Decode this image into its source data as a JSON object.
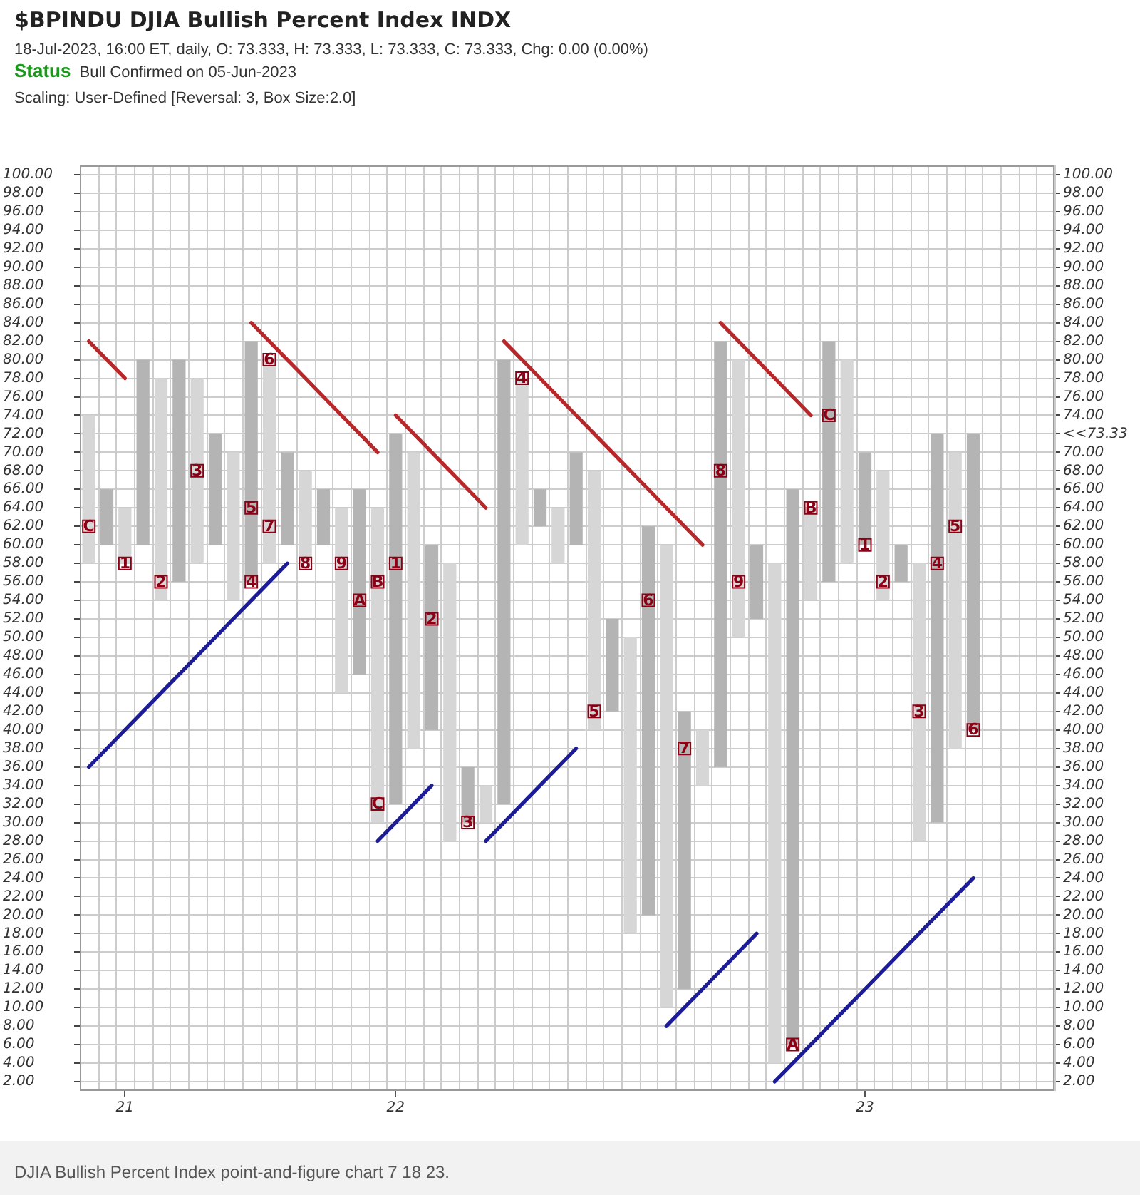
{
  "chart_data": {
    "type": "bar",
    "title": "$BPINDU DJIA Bullish Percent Index INDX",
    "subtitle": "18-Jul-2023, 16:00 ET, daily, O: 73.333, H: 73.333, L: 73.333, C: 73.333, Chg: 0.00 (0.00%)",
    "annotations": [
      "Status",
      "Bull Confirmed on 05-Jun-2023",
      "Scaling: User-Defined [Reversal: 3, Box Size:2.0]",
      "DJIA Bullish Percent Index point-and-figure chart 7 18 23."
    ],
    "categories": [
      null,
      null,
      "21",
      null,
      null,
      null,
      null,
      null,
      null,
      null,
      null,
      null,
      null,
      null,
      null,
      null,
      null,
      "22",
      null,
      null,
      null,
      null,
      null,
      null,
      null,
      null,
      null,
      null,
      null,
      null,
      null,
      null,
      null,
      null,
      null,
      null,
      null,
      null,
      null,
      null,
      null,
      null,
      null,
      "23",
      null,
      null,
      null,
      null,
      null,
      null,
      null,
      null,
      null,
      null
    ],
    "ylim": [
      1,
      101
    ],
    "yticks": [
      {
        "value": 2,
        "label": "2.00"
      },
      {
        "value": 4,
        "label": "4.00"
      },
      {
        "value": 6,
        "label": "6.00"
      },
      {
        "value": 8,
        "label": "8.00"
      },
      {
        "value": 10,
        "label": "10.00"
      },
      {
        "value": 12,
        "label": "12.00"
      },
      {
        "value": 14,
        "label": "14.00"
      },
      {
        "value": 16,
        "label": "16.00"
      },
      {
        "value": 18,
        "label": "18.00"
      },
      {
        "value": 20,
        "label": "20.00"
      },
      {
        "value": 22,
        "label": "22.00"
      },
      {
        "value": 24,
        "label": "24.00"
      },
      {
        "value": 26,
        "label": "26.00"
      },
      {
        "value": 28,
        "label": "28.00"
      },
      {
        "value": 30,
        "label": "30.00"
      },
      {
        "value": 32,
        "label": "32.00"
      },
      {
        "value": 34,
        "label": "34.00"
      },
      {
        "value": 36,
        "label": "36.00"
      },
      {
        "value": 38,
        "label": "38.00"
      },
      {
        "value": 40,
        "label": "40.00"
      },
      {
        "value": 42,
        "label": "42.00"
      },
      {
        "value": 44,
        "label": "44.00"
      },
      {
        "value": 46,
        "label": "46.00"
      },
      {
        "value": 48,
        "label": "48.00"
      },
      {
        "value": 50,
        "label": "50.00"
      },
      {
        "value": 52,
        "label": "52.00"
      },
      {
        "value": 54,
        "label": "54.00"
      },
      {
        "value": 56,
        "label": "56.00"
      },
      {
        "value": 58,
        "label": "58.00"
      },
      {
        "value": 60,
        "label": "60.00"
      },
      {
        "value": 62,
        "label": "62.00"
      },
      {
        "value": 64,
        "label": "64.00"
      },
      {
        "value": 66,
        "label": "66.00"
      },
      {
        "value": 68,
        "label": "68.00"
      },
      {
        "value": 70,
        "label": "70.00"
      },
      {
        "value": 72,
        "label": "72.00"
      },
      {
        "value": 74,
        "label": "74.00"
      },
      {
        "value": 76,
        "label": "76.00"
      },
      {
        "value": 78,
        "label": "78.00"
      },
      {
        "value": 80,
        "label": "80.00"
      },
      {
        "value": 82,
        "label": "82.00"
      },
      {
        "value": 84,
        "label": "84.00"
      },
      {
        "value": 86,
        "label": "86.00"
      },
      {
        "value": 88,
        "label": "88.00"
      },
      {
        "value": 90,
        "label": "90.00"
      },
      {
        "value": 92,
        "label": "92.00"
      },
      {
        "value": 94,
        "label": "94.00"
      },
      {
        "value": 96,
        "label": "96.00"
      },
      {
        "value": 98,
        "label": "98.00"
      },
      {
        "value": 100,
        "label": "100.00"
      }
    ],
    "y2lim": [
      1,
      101
    ],
    "y2ticks": [
      {
        "value": 2,
        "label": "2.00"
      },
      {
        "value": 4,
        "label": "4.00"
      },
      {
        "value": 6,
        "label": "6.00"
      },
      {
        "value": 8,
        "label": "8.00"
      },
      {
        "value": 10,
        "label": "10.00"
      },
      {
        "value": 12,
        "label": "12.00"
      },
      {
        "value": 14,
        "label": "14.00"
      },
      {
        "value": 16,
        "label": "16.00"
      },
      {
        "value": 18,
        "label": "18.00"
      },
      {
        "value": 20,
        "label": "20.00"
      },
      {
        "value": 22,
        "label": "22.00"
      },
      {
        "value": 24,
        "label": "24.00"
      },
      {
        "value": 26,
        "label": "26.00"
      },
      {
        "value": 28,
        "label": "28.00"
      },
      {
        "value": 30,
        "label": "30.00"
      },
      {
        "value": 32,
        "label": "32.00"
      },
      {
        "value": 34,
        "label": "34.00"
      },
      {
        "value": 36,
        "label": "36.00"
      },
      {
        "value": 38,
        "label": "38.00"
      },
      {
        "value": 40,
        "label": "40.00"
      },
      {
        "value": 42,
        "label": "42.00"
      },
      {
        "value": 44,
        "label": "44.00"
      },
      {
        "value": 46,
        "label": "46.00"
      },
      {
        "value": 48,
        "label": "48.00"
      },
      {
        "value": 50,
        "label": "50.00"
      },
      {
        "value": 52,
        "label": "52.00"
      },
      {
        "value": 54,
        "label": "54.00"
      },
      {
        "value": 56,
        "label": "56.00"
      },
      {
        "value": 58,
        "label": "58.00"
      },
      {
        "value": 60,
        "label": "60.00"
      },
      {
        "value": 62,
        "label": "62.00"
      },
      {
        "value": 64,
        "label": "64.00"
      },
      {
        "value": 66,
        "label": "66.00"
      },
      {
        "value": 68,
        "label": "68.00"
      },
      {
        "value": 70,
        "label": "70.00"
      },
      {
        "value": 72,
        "label": "<<73.33"
      },
      {
        "value": 74,
        "label": "74.00"
      },
      {
        "value": 76,
        "label": "76.00"
      },
      {
        "value": 78,
        "label": "78.00"
      },
      {
        "value": 80,
        "label": "80.00"
      },
      {
        "value": 82,
        "label": "82.00"
      },
      {
        "value": 84,
        "label": "84.00"
      },
      {
        "value": 86,
        "label": "86.00"
      },
      {
        "value": 88,
        "label": "88.00"
      },
      {
        "value": 90,
        "label": "90.00"
      },
      {
        "value": 92,
        "label": "92.00"
      },
      {
        "value": 94,
        "label": "94.00"
      },
      {
        "value": 96,
        "label": "96.00"
      },
      {
        "value": 98,
        "label": "98.00"
      },
      {
        "value": 100,
        "label": "100.00"
      }
    ],
    "grid": true,
    "series": [
      {
        "color": "#b4b4b4",
        "base": [
          null,
          60,
          null,
          60,
          null,
          56,
          null,
          60,
          null,
          56,
          null,
          60,
          null,
          60,
          null,
          46,
          null,
          32,
          null,
          40,
          null,
          30,
          null,
          32,
          null,
          62,
          null,
          60,
          null,
          42,
          null,
          20,
          null,
          12,
          null,
          36,
          null,
          52,
          null,
          6,
          null,
          56,
          null,
          60,
          null,
          56,
          null,
          30,
          null,
          40,
          null,
          null,
          null,
          null
        ],
        "values": [
          null,
          6,
          null,
          20,
          null,
          24,
          null,
          12,
          null,
          26,
          null,
          10,
          null,
          6,
          null,
          20,
          null,
          40,
          null,
          20,
          null,
          6,
          null,
          48,
          null,
          4,
          null,
          10,
          null,
          10,
          null,
          42,
          null,
          30,
          null,
          46,
          null,
          8,
          null,
          60,
          null,
          26,
          null,
          10,
          null,
          4,
          null,
          42,
          null,
          32,
          null,
          null,
          null,
          null
        ]
      },
      {
        "color": "#d6d6d6",
        "base": [
          58,
          null,
          58,
          null,
          54,
          null,
          58,
          null,
          54,
          null,
          58,
          null,
          58,
          null,
          44,
          null,
          30,
          null,
          38,
          null,
          28,
          null,
          30,
          null,
          60,
          null,
          58,
          null,
          40,
          null,
          18,
          null,
          10,
          null,
          34,
          null,
          50,
          null,
          4,
          null,
          54,
          null,
          58,
          null,
          54,
          null,
          28,
          null,
          38,
          null,
          null,
          null,
          null,
          null
        ],
        "values": [
          16,
          null,
          6,
          null,
          24,
          null,
          20,
          null,
          16,
          null,
          22,
          null,
          10,
          null,
          20,
          null,
          34,
          null,
          32,
          null,
          30,
          null,
          4,
          null,
          18,
          null,
          6,
          null,
          28,
          null,
          32,
          null,
          50,
          null,
          6,
          null,
          30,
          null,
          54,
          null,
          10,
          null,
          22,
          null,
          14,
          null,
          30,
          null,
          32,
          null,
          null,
          null,
          null,
          null
        ]
      },
      {
        "type": "scatter",
        "name": "1",
        "marker": "square",
        "color": "#8c0015",
        "values": [
          null,
          null,
          58,
          null,
          null,
          null,
          null,
          null,
          null,
          null,
          null,
          null,
          null,
          null,
          null,
          null,
          null,
          58,
          null,
          null,
          null,
          null,
          null,
          null,
          null,
          null,
          null,
          null,
          null,
          null,
          null,
          null,
          null,
          null,
          null,
          null,
          null,
          null,
          null,
          null,
          null,
          null,
          null,
          60,
          null,
          null,
          null,
          null,
          null,
          null,
          null,
          null,
          null,
          null
        ]
      },
      {
        "type": "scatter",
        "name": "2",
        "marker": "square",
        "color": "#8c0015",
        "values": [
          null,
          null,
          null,
          null,
          56,
          null,
          null,
          null,
          null,
          null,
          null,
          null,
          null,
          null,
          null,
          null,
          null,
          null,
          null,
          52,
          null,
          null,
          null,
          null,
          null,
          null,
          null,
          null,
          null,
          null,
          null,
          null,
          null,
          null,
          null,
          null,
          null,
          null,
          null,
          null,
          null,
          null,
          null,
          null,
          56,
          null,
          null,
          null,
          null,
          null,
          null,
          null,
          null,
          null
        ]
      },
      {
        "type": "scatter",
        "name": "3",
        "marker": "square",
        "color": "#8c0015",
        "values": [
          null,
          null,
          null,
          null,
          null,
          null,
          68,
          null,
          null,
          null,
          null,
          null,
          null,
          null,
          null,
          null,
          null,
          null,
          null,
          null,
          null,
          30,
          null,
          null,
          null,
          null,
          null,
          null,
          null,
          null,
          null,
          null,
          null,
          null,
          null,
          null,
          null,
          null,
          null,
          null,
          null,
          null,
          null,
          null,
          null,
          null,
          42,
          null,
          null,
          null,
          null,
          null,
          null,
          null
        ]
      },
      {
        "type": "scatter",
        "name": "4",
        "marker": "square",
        "color": "#8c0015",
        "values": [
          null,
          null,
          null,
          null,
          null,
          null,
          null,
          null,
          null,
          56,
          null,
          null,
          null,
          null,
          null,
          null,
          null,
          null,
          null,
          null,
          null,
          null,
          null,
          null,
          78,
          null,
          null,
          null,
          null,
          null,
          null,
          null,
          null,
          null,
          null,
          null,
          null,
          null,
          null,
          null,
          null,
          null,
          null,
          null,
          null,
          null,
          null,
          58,
          null,
          null,
          null,
          null,
          null,
          null
        ]
      },
      {
        "type": "scatter",
        "name": "5",
        "marker": "square",
        "color": "#8c0015",
        "values": [
          null,
          null,
          null,
          null,
          null,
          null,
          null,
          null,
          null,
          64,
          null,
          null,
          null,
          null,
          null,
          null,
          null,
          null,
          null,
          null,
          null,
          null,
          null,
          null,
          null,
          null,
          null,
          null,
          42,
          null,
          null,
          null,
          null,
          null,
          null,
          null,
          null,
          null,
          null,
          null,
          null,
          null,
          null,
          null,
          null,
          null,
          null,
          null,
          62,
          null,
          null,
          null,
          null,
          null
        ]
      },
      {
        "type": "scatter",
        "name": "6",
        "marker": "square",
        "color": "#8c0015",
        "values": [
          null,
          null,
          null,
          null,
          null,
          null,
          null,
          null,
          null,
          null,
          80,
          null,
          null,
          null,
          null,
          null,
          null,
          null,
          null,
          null,
          null,
          null,
          null,
          null,
          null,
          null,
          null,
          null,
          null,
          null,
          null,
          54,
          null,
          null,
          null,
          null,
          null,
          null,
          null,
          null,
          null,
          null,
          null,
          null,
          null,
          null,
          null,
          null,
          null,
          40,
          null,
          null,
          null,
          null
        ]
      },
      {
        "type": "scatter",
        "name": "7",
        "marker": "square",
        "color": "#8c0015",
        "values": [
          null,
          null,
          null,
          null,
          null,
          null,
          null,
          null,
          null,
          null,
          62,
          null,
          null,
          null,
          null,
          null,
          null,
          null,
          null,
          null,
          null,
          null,
          null,
          null,
          null,
          null,
          null,
          null,
          null,
          null,
          null,
          null,
          null,
          38,
          null,
          null,
          null,
          null,
          null,
          null,
          null,
          null,
          null,
          null,
          null,
          null,
          null,
          null,
          null,
          null,
          null,
          null,
          null,
          null
        ]
      },
      {
        "type": "scatter",
        "name": "8",
        "marker": "square",
        "color": "#8c0015",
        "values": [
          null,
          null,
          null,
          null,
          null,
          null,
          null,
          null,
          null,
          null,
          null,
          null,
          58,
          null,
          null,
          null,
          null,
          null,
          null,
          null,
          null,
          null,
          null,
          null,
          null,
          null,
          null,
          null,
          null,
          null,
          null,
          null,
          null,
          null,
          null,
          68,
          null,
          null,
          null,
          null,
          null,
          null,
          null,
          null,
          null,
          null,
          null,
          null,
          null,
          null,
          null,
          null,
          null,
          null
        ]
      },
      {
        "type": "scatter",
        "name": "9",
        "marker": "square",
        "color": "#8c0015",
        "values": [
          null,
          null,
          null,
          null,
          null,
          null,
          null,
          null,
          null,
          null,
          null,
          null,
          null,
          null,
          58,
          null,
          null,
          null,
          null,
          null,
          null,
          null,
          null,
          null,
          null,
          null,
          null,
          null,
          null,
          null,
          null,
          null,
          null,
          null,
          null,
          null,
          56,
          null,
          null,
          null,
          null,
          null,
          null,
          null,
          null,
          null,
          null,
          null,
          null,
          null,
          null,
          null,
          null,
          null
        ]
      },
      {
        "type": "scatter",
        "name": "A",
        "marker": "square",
        "color": "#8c0015",
        "values": [
          null,
          null,
          null,
          null,
          null,
          null,
          null,
          null,
          null,
          null,
          null,
          null,
          null,
          null,
          null,
          54,
          null,
          null,
          null,
          null,
          null,
          null,
          null,
          null,
          null,
          null,
          null,
          null,
          null,
          null,
          null,
          null,
          null,
          null,
          null,
          null,
          null,
          null,
          null,
          6,
          null,
          null,
          null,
          null,
          null,
          null,
          null,
          null,
          null,
          null,
          null,
          null,
          null,
          null
        ]
      },
      {
        "type": "scatter",
        "name": "B",
        "marker": "square",
        "color": "#8c0015",
        "values": [
          null,
          null,
          null,
          null,
          null,
          null,
          null,
          null,
          null,
          null,
          null,
          null,
          null,
          null,
          null,
          null,
          56,
          null,
          null,
          null,
          null,
          null,
          null,
          null,
          null,
          null,
          null,
          null,
          null,
          null,
          null,
          null,
          null,
          null,
          null,
          null,
          null,
          null,
          null,
          null,
          64,
          null,
          null,
          null,
          null,
          null,
          null,
          null,
          null,
          null,
          null,
          null,
          null,
          null
        ]
      },
      {
        "type": "scatter",
        "name": "C",
        "marker": "square",
        "color": "#8c0015",
        "values": [
          62,
          null,
          null,
          null,
          null,
          null,
          null,
          null,
          null,
          null,
          null,
          null,
          null,
          null,
          null,
          null,
          32,
          null,
          null,
          null,
          null,
          null,
          null,
          null,
          null,
          null,
          null,
          null,
          null,
          null,
          null,
          null,
          null,
          null,
          null,
          null,
          null,
          null,
          null,
          null,
          null,
          74,
          null,
          null,
          null,
          null,
          null,
          null,
          null,
          null,
          null,
          null,
          null,
          null
        ]
      },
      {
        "type": "line",
        "color": "#b8282a",
        "values": [
          82,
          80,
          78,
          null,
          null,
          null,
          null,
          null,
          null,
          null,
          null,
          null,
          null,
          null,
          null,
          null,
          null,
          null,
          null,
          null,
          null,
          null,
          null,
          null,
          null,
          null,
          null,
          null,
          null,
          null,
          null,
          null,
          null,
          null,
          null,
          null,
          null,
          null,
          null,
          null,
          null,
          null,
          null,
          null,
          null,
          null,
          null,
          null,
          null,
          null,
          null,
          null,
          null,
          null
        ]
      },
      {
        "type": "line",
        "color": "#b8282a",
        "values": [
          null,
          null,
          null,
          null,
          null,
          null,
          null,
          null,
          null,
          84,
          82,
          80,
          78,
          76,
          74,
          72,
          70,
          null,
          null,
          null,
          null,
          null,
          null,
          null,
          null,
          null,
          null,
          null,
          null,
          null,
          null,
          null,
          null,
          null,
          null,
          null,
          null,
          null,
          null,
          null,
          null,
          null,
          null,
          null,
          null,
          null,
          null,
          null,
          null,
          null,
          null,
          null,
          null,
          null
        ]
      },
      {
        "type": "line",
        "color": "#b8282a",
        "values": [
          null,
          null,
          null,
          null,
          null,
          null,
          null,
          null,
          null,
          null,
          null,
          null,
          null,
          null,
          null,
          null,
          null,
          74,
          72,
          70,
          68,
          66,
          64,
          null,
          null,
          null,
          null,
          null,
          null,
          null,
          null,
          null,
          null,
          null,
          null,
          null,
          null,
          null,
          null,
          null,
          null,
          null,
          null,
          null,
          null,
          null,
          null,
          null,
          null,
          null,
          null,
          null,
          null,
          null
        ]
      },
      {
        "type": "line",
        "color": "#b8282a",
        "values": [
          null,
          null,
          null,
          null,
          null,
          null,
          null,
          null,
          null,
          null,
          null,
          null,
          null,
          null,
          null,
          null,
          null,
          null,
          null,
          null,
          null,
          null,
          null,
          82,
          80,
          78,
          76,
          74,
          72,
          70,
          68,
          66,
          64,
          62,
          60,
          null,
          null,
          null,
          null,
          null,
          null,
          null,
          null,
          null,
          null,
          null,
          null,
          null,
          null,
          null,
          null,
          null,
          null,
          null
        ]
      },
      {
        "type": "line",
        "color": "#b8282a",
        "values": [
          null,
          null,
          null,
          null,
          null,
          null,
          null,
          null,
          null,
          null,
          null,
          null,
          null,
          null,
          null,
          null,
          null,
          null,
          null,
          null,
          null,
          null,
          null,
          null,
          null,
          null,
          null,
          null,
          null,
          null,
          null,
          null,
          null,
          null,
          null,
          84,
          82,
          80,
          78,
          76,
          74,
          null,
          null,
          null,
          null,
          null,
          null,
          null,
          null,
          null,
          null,
          null,
          null,
          null
        ]
      },
      {
        "type": "line",
        "color": "#1c1c96",
        "values": [
          36,
          38,
          40,
          42,
          44,
          46,
          48,
          50,
          52,
          54,
          56,
          58,
          null,
          null,
          null,
          null,
          null,
          null,
          null,
          null,
          null,
          null,
          null,
          null,
          null,
          null,
          null,
          null,
          null,
          null,
          null,
          null,
          null,
          null,
          null,
          null,
          null,
          null,
          null,
          null,
          null,
          null,
          null,
          null,
          null,
          null,
          null,
          null,
          null,
          null,
          null,
          null,
          null,
          null
        ]
      },
      {
        "type": "line",
        "color": "#1c1c96",
        "values": [
          null,
          null,
          null,
          null,
          null,
          null,
          null,
          null,
          null,
          null,
          null,
          null,
          null,
          null,
          null,
          null,
          28,
          30,
          32,
          34,
          null,
          null,
          null,
          null,
          null,
          null,
          null,
          null,
          null,
          null,
          null,
          null,
          null,
          null,
          null,
          null,
          null,
          null,
          null,
          null,
          null,
          null,
          null,
          null,
          null,
          null,
          null,
          null,
          null,
          null,
          null,
          null,
          null,
          null
        ]
      },
      {
        "type": "line",
        "color": "#1c1c96",
        "values": [
          null,
          null,
          null,
          null,
          null,
          null,
          null,
          null,
          null,
          null,
          null,
          null,
          null,
          null,
          null,
          null,
          null,
          null,
          null,
          null,
          null,
          null,
          28,
          30,
          32,
          34,
          36,
          38,
          null,
          null,
          null,
          null,
          null,
          null,
          null,
          null,
          null,
          null,
          null,
          null,
          null,
          null,
          null,
          null,
          null,
          null,
          null,
          null,
          null,
          null,
          null,
          null,
          null,
          null
        ]
      },
      {
        "type": "line",
        "color": "#1c1c96",
        "values": [
          null,
          null,
          null,
          null,
          null,
          null,
          null,
          null,
          null,
          null,
          null,
          null,
          null,
          null,
          null,
          null,
          null,
          null,
          null,
          null,
          null,
          null,
          null,
          null,
          null,
          null,
          null,
          null,
          null,
          null,
          null,
          null,
          8,
          10,
          12,
          14,
          16,
          18,
          null,
          null,
          null,
          null,
          null,
          null,
          null,
          null,
          null,
          null,
          null,
          null,
          null,
          null,
          null,
          null
        ]
      },
      {
        "type": "line",
        "color": "#1c1c96",
        "values": [
          null,
          null,
          null,
          null,
          null,
          null,
          null,
          null,
          null,
          null,
          null,
          null,
          null,
          null,
          null,
          null,
          null,
          null,
          null,
          null,
          null,
          null,
          null,
          null,
          null,
          null,
          null,
          null,
          null,
          null,
          null,
          null,
          null,
          null,
          null,
          null,
          null,
          null,
          2,
          4,
          6,
          8,
          10,
          12,
          14,
          16,
          18,
          20,
          22,
          24,
          null,
          null,
          null,
          null
        ]
      }
    ]
  }
}
